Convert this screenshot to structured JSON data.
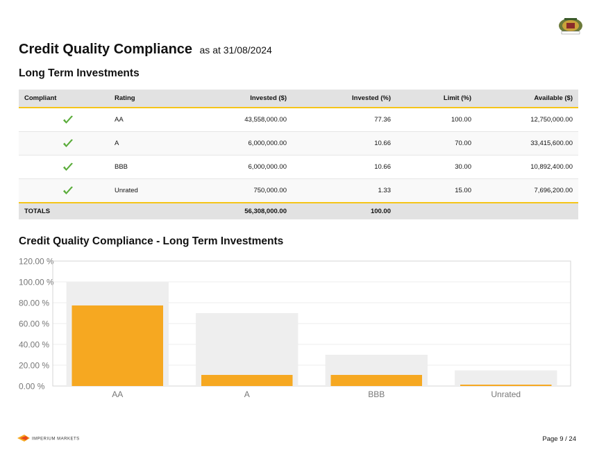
{
  "header": {
    "title": "Credit Quality Compliance",
    "date": "as at 31/08/2024",
    "section_title": "Long Term Investments",
    "chart_title": "Credit Quality Compliance - Long Term Investments"
  },
  "table": {
    "columns": [
      "Compliant",
      "Rating",
      "Invested ($)",
      "Invested (%)",
      "Limit (%)",
      "Available ($)"
    ],
    "rows": [
      {
        "compliant": "check-icon",
        "rating": "AA",
        "invested": "43,558,000.00",
        "invested_pct": "77.36",
        "limit": "100.00",
        "available": "12,750,000.00"
      },
      {
        "compliant": "check-icon",
        "rating": "A",
        "invested": "6,000,000.00",
        "invested_pct": "10.66",
        "limit": "70.00",
        "available": "33,415,600.00"
      },
      {
        "compliant": "check-icon",
        "rating": "BBB",
        "invested": "6,000,000.00",
        "invested_pct": "10.66",
        "limit": "30.00",
        "available": "10,892,400.00"
      },
      {
        "compliant": "check-icon",
        "rating": "Unrated",
        "invested": "750,000.00",
        "invested_pct": "1.33",
        "limit": "15.00",
        "available": "7,696,200.00"
      }
    ],
    "totals": {
      "label": "TOTALS",
      "invested": "56,308,000.00",
      "invested_pct": "100.00"
    }
  },
  "chart_data": {
    "type": "bar",
    "categories": [
      "AA",
      "A",
      "BBB",
      "Unrated"
    ],
    "series": [
      {
        "name": "Limit (%)",
        "values": [
          100.0,
          70.0,
          30.0,
          15.0
        ],
        "color": "#eeeeee"
      },
      {
        "name": "Invested (%)",
        "values": [
          77.36,
          10.66,
          10.66,
          1.33
        ],
        "color": "#f6a821"
      }
    ],
    "ylim": [
      0,
      120
    ],
    "yticks": [
      "0.00 %",
      "20.00 %",
      "40.00 %",
      "60.00 %",
      "80.00 %",
      "100.00 %",
      "120.00 %"
    ],
    "grid": true
  },
  "footer": {
    "brand": "IMPERIUM MARKETS",
    "page": "Page 9 / 24"
  },
  "colors": {
    "accent": "#f5c518",
    "bar": "#f6a821",
    "limit_bar": "#eeeeee",
    "check": "#5aac3a"
  }
}
